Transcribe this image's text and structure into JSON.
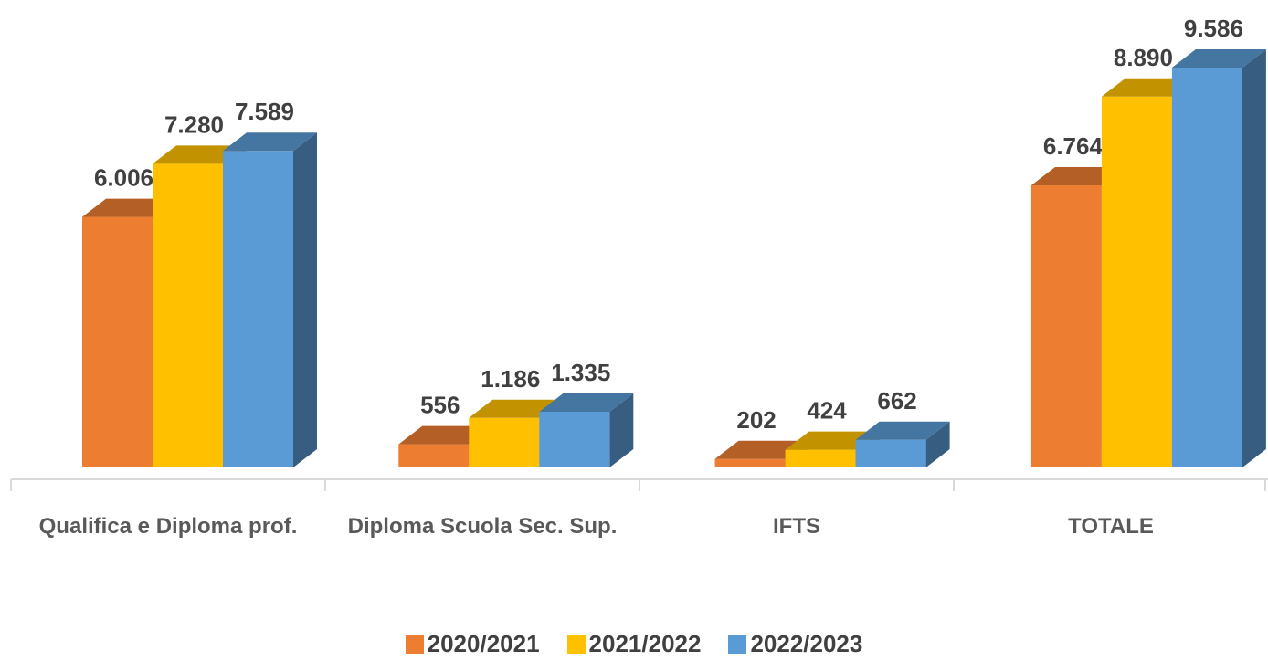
{
  "chart_data": {
    "type": "bar3d",
    "categories": [
      "Qualifica e Diploma prof.",
      "Diploma Scuola Sec. Sup.",
      "IFTS",
      "TOTALE"
    ],
    "series": [
      {
        "name": "2020/2021",
        "color": "#ed7d31",
        "values": [
          6006,
          556,
          202,
          6764
        ],
        "value_labels": [
          "6.006",
          "556",
          "202",
          "6.764"
        ]
      },
      {
        "name": "2021/2022",
        "color": "#ffc000",
        "values": [
          7280,
          1186,
          424,
          8890
        ],
        "value_labels": [
          "7.280",
          "1.186",
          "424",
          "8.890"
        ]
      },
      {
        "name": "2022/2023",
        "color": "#5b9bd5",
        "values": [
          7589,
          1335,
          662,
          9586
        ],
        "value_labels": [
          "7.589",
          "1.335",
          "662",
          "9.586"
        ]
      }
    ],
    "legend": "bottom"
  }
}
